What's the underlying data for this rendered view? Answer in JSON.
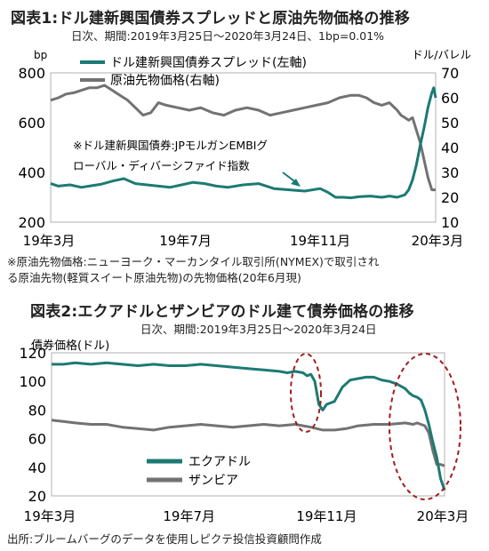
{
  "figure1": {
    "title": "図表1:ドル建新興国債券スプレッドと原油先物価格の推移",
    "subtitle": "日次、期間:2019年3月25日～2020年3月24日、1bp=0.01%",
    "note_lines": [
      "※原油先物価格:ニューヨーク・マーカンタイル取引所(NYMEX)で取引され",
      "る原油先物(軽質スイート原油先物)の先物価格(20年6月現)"
    ]
  },
  "figure2": {
    "title": "図表2:エクアドルとザンビアのドル建て債券価格の推移",
    "subtitle": "日次、期間:2019年3月25日～2020年3月24日"
  },
  "source": "出所:ブルームバーグのデータを使用しピクテ投信投資顧問作成",
  "colors": {
    "teal": "#1c7a74",
    "gray": "#727272",
    "circle": "#a01d1d"
  },
  "chart_data": [
    {
      "type": "line",
      "left_unit": "bp",
      "right_unit": "ドル/バレル",
      "x_tick_labels": [
        "19年3月",
        "19年7月",
        "19年11月",
        "20年3月"
      ],
      "x_tick_positions": [
        0,
        0.35,
        0.7,
        1.0
      ],
      "left_ylim": [
        200,
        800
      ],
      "left_yticks": [
        200,
        400,
        600,
        800
      ],
      "right_ylim": [
        10,
        70
      ],
      "right_yticks": [
        10,
        20,
        30,
        40,
        50,
        60,
        70
      ],
      "annotation_lines": [
        "※ドル建新興国債券:JPモルガンEMBIグ",
        "ローバル・ディバーシファイド指数"
      ],
      "series": [
        {
          "name": "ドル建新興国債券スプレッド(左軸)",
          "axis": "left",
          "color": "#1c7a74",
          "t": [
            0,
            0.02,
            0.05,
            0.08,
            0.1,
            0.13,
            0.16,
            0.19,
            0.22,
            0.25,
            0.28,
            0.31,
            0.34,
            0.37,
            0.4,
            0.43,
            0.46,
            0.5,
            0.54,
            0.58,
            0.62,
            0.66,
            0.7,
            0.72,
            0.74,
            0.76,
            0.78,
            0.8,
            0.83,
            0.86,
            0.88,
            0.9,
            0.92,
            0.93,
            0.94,
            0.95,
            0.96,
            0.97,
            0.975,
            0.98,
            0.985,
            0.99,
            0.995,
            1.0
          ],
          "values": [
            355,
            345,
            350,
            340,
            345,
            352,
            365,
            375,
            355,
            350,
            345,
            340,
            350,
            360,
            355,
            345,
            340,
            350,
            355,
            335,
            330,
            325,
            335,
            320,
            300,
            300,
            298,
            302,
            305,
            300,
            305,
            300,
            310,
            330,
            370,
            430,
            510,
            580,
            620,
            660,
            690,
            720,
            740,
            700
          ]
        },
        {
          "name": "原油先物価格(右軸)",
          "axis": "right",
          "color": "#727272",
          "t": [
            0,
            0.02,
            0.04,
            0.06,
            0.08,
            0.1,
            0.12,
            0.14,
            0.16,
            0.18,
            0.2,
            0.22,
            0.24,
            0.26,
            0.28,
            0.3,
            0.33,
            0.36,
            0.39,
            0.42,
            0.45,
            0.48,
            0.51,
            0.54,
            0.57,
            0.6,
            0.63,
            0.66,
            0.69,
            0.72,
            0.75,
            0.78,
            0.8,
            0.82,
            0.84,
            0.86,
            0.88,
            0.9,
            0.91,
            0.92,
            0.93,
            0.94,
            0.95,
            0.96,
            0.97,
            0.98,
            0.99,
            1.0
          ],
          "values": [
            59,
            60,
            61.5,
            62,
            63,
            64,
            64,
            65,
            63,
            61,
            59,
            56,
            53,
            54,
            58,
            57,
            56,
            55,
            56,
            54,
            53,
            55,
            56,
            55,
            53,
            54,
            55,
            56,
            57,
            58,
            60,
            61,
            61,
            60,
            58,
            57,
            58,
            55,
            53,
            52,
            51,
            52,
            47,
            42,
            35,
            28,
            23,
            23
          ]
        }
      ]
    },
    {
      "type": "line",
      "ylabel": "債券価格(ドル)",
      "x_tick_labels": [
        "19年3月",
        "19年7月",
        "19年11月",
        "20年3月"
      ],
      "x_tick_positions": [
        0,
        0.35,
        0.7,
        1.0
      ],
      "ylim": [
        20,
        120
      ],
      "yticks": [
        20,
        40,
        60,
        80,
        100,
        120
      ],
      "series": [
        {
          "name": "エクアドル",
          "color": "#1c7a74",
          "t": [
            0,
            0.03,
            0.06,
            0.1,
            0.14,
            0.18,
            0.22,
            0.26,
            0.3,
            0.34,
            0.38,
            0.42,
            0.46,
            0.5,
            0.54,
            0.58,
            0.6,
            0.62,
            0.64,
            0.65,
            0.66,
            0.67,
            0.68,
            0.69,
            0.7,
            0.72,
            0.74,
            0.76,
            0.78,
            0.8,
            0.82,
            0.84,
            0.86,
            0.88,
            0.9,
            0.91,
            0.92,
            0.93,
            0.94,
            0.95,
            0.96,
            0.97,
            0.98,
            0.99,
            1.0
          ],
          "values": [
            112,
            112,
            113,
            112,
            113,
            112,
            111,
            112,
            111,
            111,
            112,
            111,
            110,
            109,
            108,
            107,
            106,
            107,
            106,
            104,
            105,
            100,
            84,
            80,
            84,
            86,
            96,
            101,
            102,
            103,
            103,
            101,
            100,
            98,
            95,
            92,
            90,
            89,
            87,
            80,
            70,
            58,
            47,
            32,
            24
          ]
        },
        {
          "name": "ザンビア",
          "color": "#727272",
          "t": [
            0,
            0.03,
            0.06,
            0.1,
            0.14,
            0.18,
            0.22,
            0.26,
            0.3,
            0.34,
            0.38,
            0.42,
            0.46,
            0.5,
            0.54,
            0.58,
            0.62,
            0.66,
            0.69,
            0.72,
            0.75,
            0.78,
            0.82,
            0.86,
            0.9,
            0.92,
            0.93,
            0.94,
            0.95,
            0.96,
            0.97,
            0.98,
            0.99,
            1.0
          ],
          "values": [
            73,
            72,
            71,
            70,
            70,
            68,
            67,
            66,
            68,
            69,
            70,
            69,
            68,
            69,
            70,
            69,
            70,
            68,
            66,
            66,
            67,
            69,
            70,
            70,
            71,
            70,
            71,
            70,
            69,
            64,
            52,
            42,
            42,
            41
          ]
        }
      ]
    }
  ]
}
